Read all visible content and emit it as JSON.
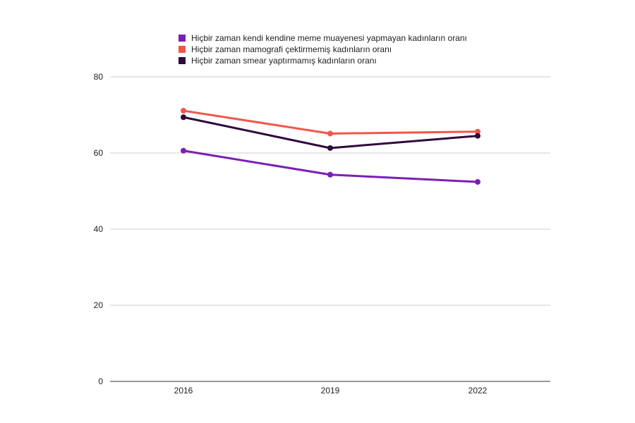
{
  "chart_data": {
    "type": "line",
    "title": "",
    "xlabel": "",
    "ylabel": "",
    "x": [
      "2016",
      "2019",
      "2022"
    ],
    "ylim": [
      0,
      80
    ],
    "yticks": [
      0,
      20,
      40,
      60,
      80
    ],
    "grid": true,
    "legend_position": "top",
    "series": [
      {
        "name": "Hiçbir zaman kendi kendine meme muayenesi yapmayan kadınların oranı",
        "values": [
          60.6,
          54.3,
          52.4
        ],
        "color": "#7b1fb5"
      },
      {
        "name": "Hiçbir zaman mamografi çektirmemiş kadınların oranı",
        "values": [
          71.1,
          65.1,
          65.6
        ],
        "color": "#f4554a"
      },
      {
        "name": "Hiçbir zaman smear yaptırmamış kadınların oranı",
        "values": [
          69.4,
          61.3,
          64.5
        ],
        "color": "#2f0a3d"
      }
    ]
  }
}
